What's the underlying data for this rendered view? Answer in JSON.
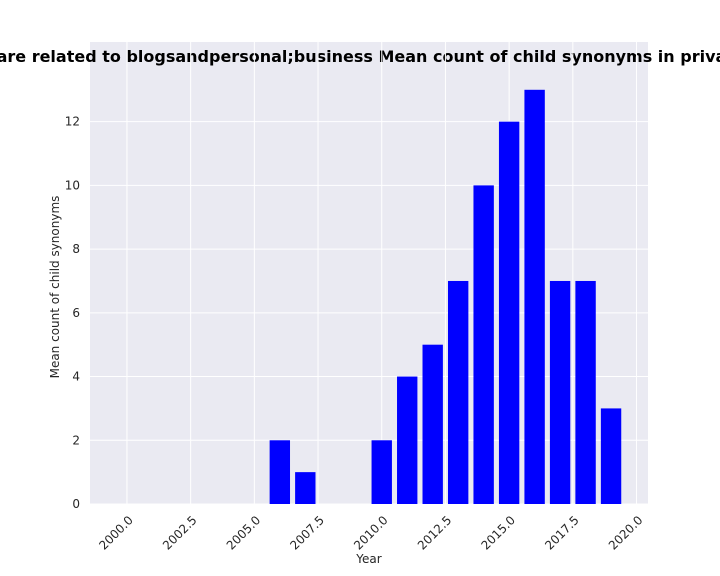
{
  "chart_data": {
    "type": "bar",
    "title": "gories are related to blogsandpersonal;business Mean count of child synonyms in privacy poli",
    "xlabel": "Year",
    "ylabel": "Mean count of child synonyms",
    "x": [
      2006,
      2007,
      2010,
      2011,
      2012,
      2013,
      2014,
      2015,
      2016,
      2017,
      2018,
      2019
    ],
    "values": [
      2,
      1,
      2,
      4,
      5,
      7,
      10,
      12,
      13,
      7,
      7,
      3
    ],
    "color": "#0000ff",
    "xlim": [
      1998.55,
      2020.45
    ],
    "ylim": [
      0,
      14.5
    ],
    "xticks": [
      {
        "value": 2000,
        "label": "2000.0"
      },
      {
        "value": 2002.5,
        "label": "2002.5"
      },
      {
        "value": 2005,
        "label": "2005.0"
      },
      {
        "value": 2007.5,
        "label": "2007.5"
      },
      {
        "value": 2010,
        "label": "2010.0"
      },
      {
        "value": 2012.5,
        "label": "2012.5"
      },
      {
        "value": 2015,
        "label": "2015.0"
      },
      {
        "value": 2017.5,
        "label": "2017.5"
      },
      {
        "value": 2020,
        "label": "2020.0"
      }
    ],
    "yticks": [
      0,
      2,
      4,
      6,
      8,
      10,
      12
    ],
    "grid": true
  }
}
